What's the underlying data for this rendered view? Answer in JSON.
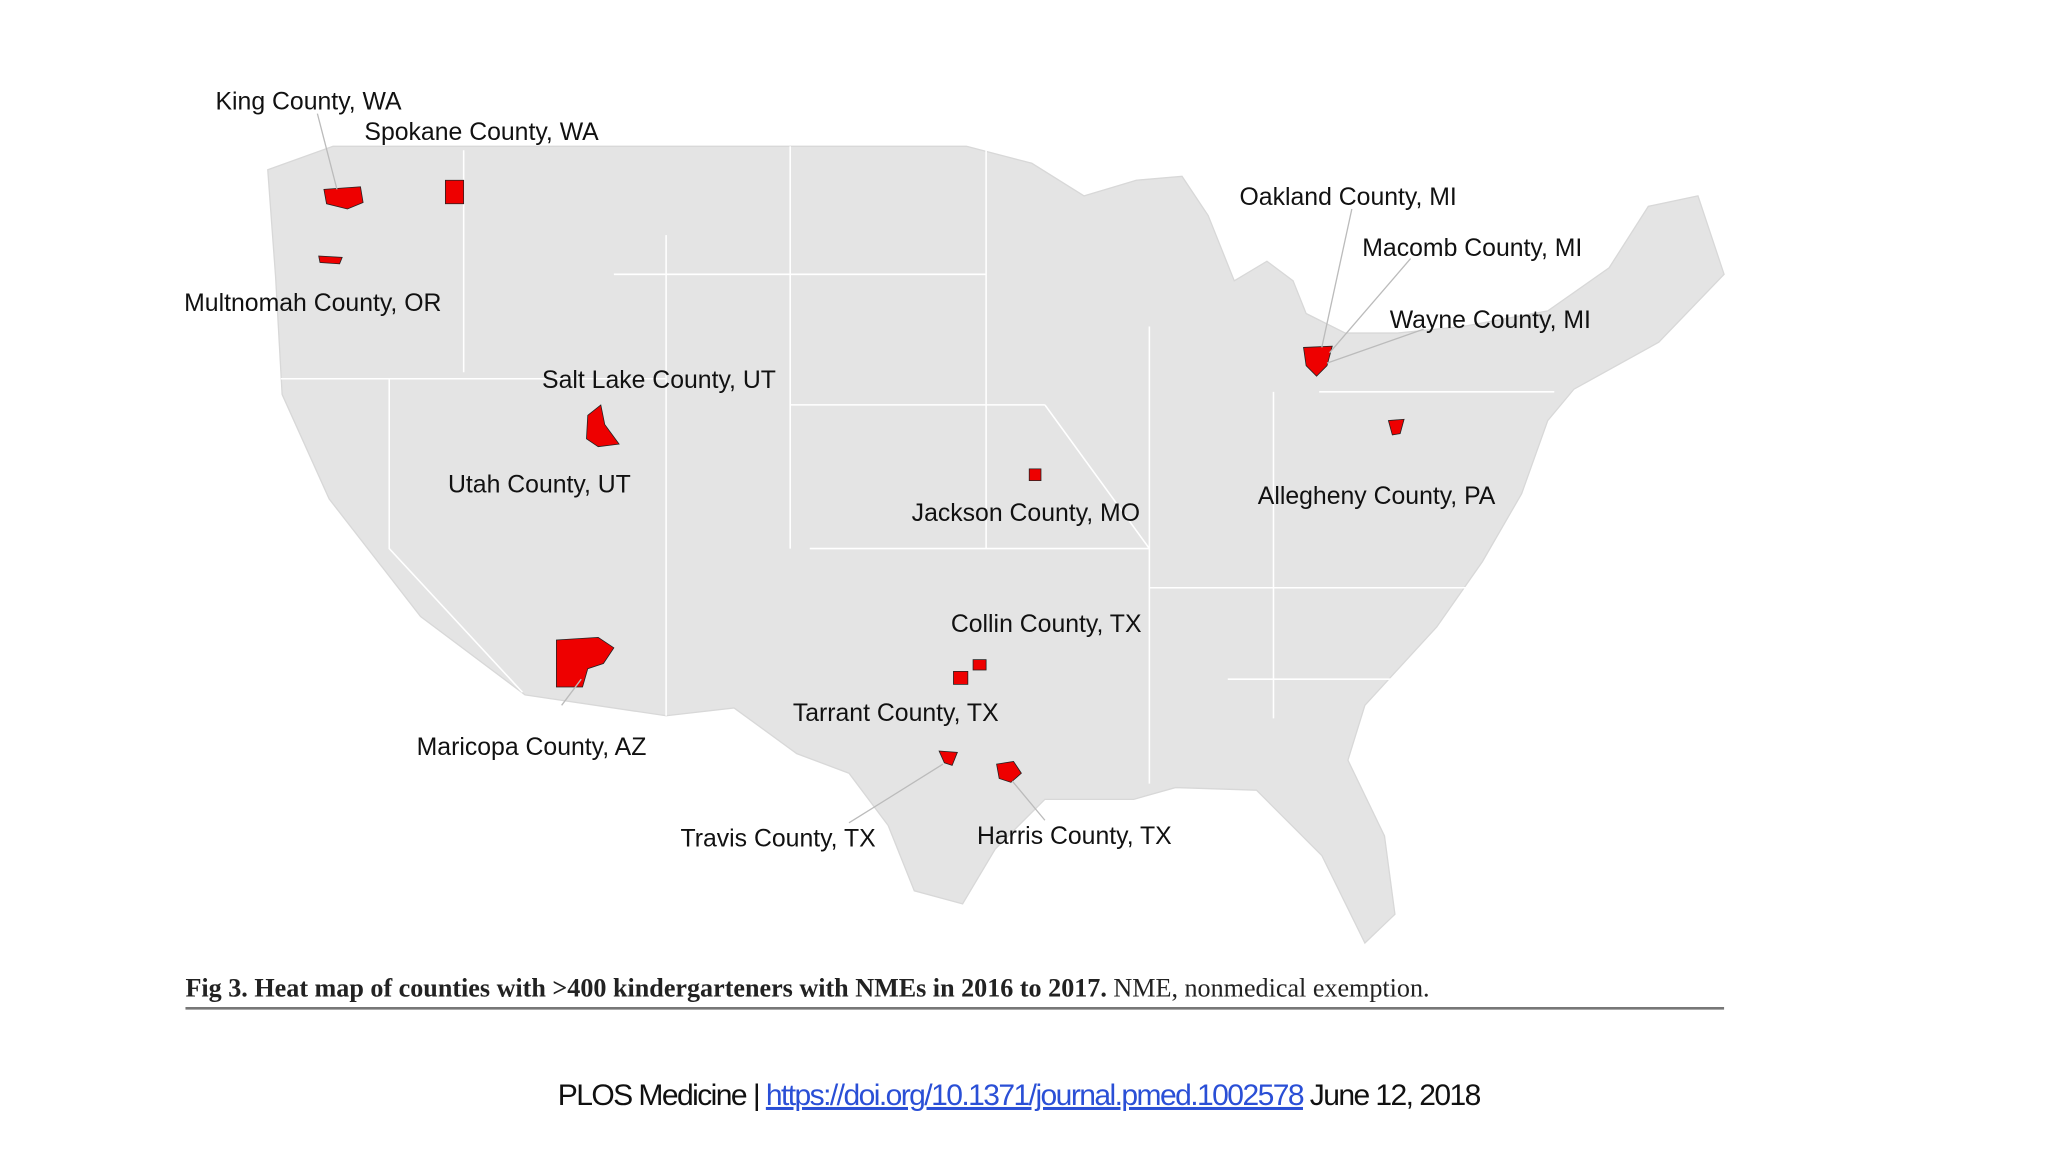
{
  "map": {
    "labels": [
      "King County, WA",
      "Spokane County, WA",
      "Multnomah County, OR",
      "Salt Lake County, UT",
      "Utah County, UT",
      "Maricopa County, AZ",
      "Oakland County, MI",
      "Macomb County, MI",
      "Wayne County, MI",
      "Allegheny County, PA",
      "Jackson County, MO",
      "Collin County, TX",
      "Tarrant County, TX",
      "Travis County, TX",
      "Harris County, TX"
    ]
  },
  "caption": {
    "title": "Fig 3. Heat map of counties with >400 kindergarteners with NMEs in 2016 to 2017.",
    "note": "NME, nonmedical exemption."
  },
  "footer": {
    "journal": "PLOS Medicine |",
    "link": "https://doi.org/10.1371/journal.pmed.1002578",
    "date": "June 12, 2018"
  }
}
